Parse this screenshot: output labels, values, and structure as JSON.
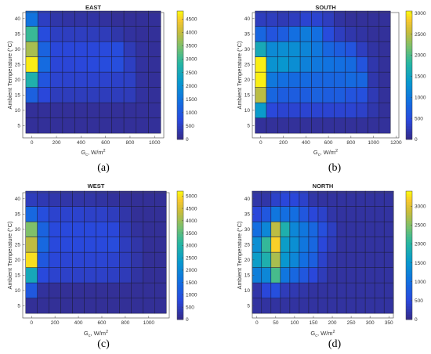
{
  "chart_data": [
    {
      "type": "heatmap",
      "title": "EAST",
      "caption": "(a)",
      "xlabel_main": "G",
      "xlabel_sub": "c",
      "xlabel_rest": ", W/m",
      "xlabel_sup": "2",
      "ylabel": "Ambient Temperature (°C)",
      "xlim": [
        -75,
        1075
      ],
      "ylim": [
        1,
        42
      ],
      "xticks": [
        0,
        200,
        400,
        600,
        800,
        1000
      ],
      "yticks": [
        5,
        10,
        15,
        20,
        25,
        30,
        35,
        40
      ],
      "x_edges": [
        -50,
        50,
        150,
        250,
        350,
        450,
        550,
        650,
        750,
        850,
        950,
        1050
      ],
      "y_edges": [
        2.5,
        7.5,
        12.5,
        17.5,
        22.5,
        27.5,
        32.5,
        37.5,
        42.5
      ],
      "colorbar_max": 4800,
      "colorbar_ticks": [
        0,
        500,
        1000,
        1500,
        2000,
        2500,
        3000,
        3500,
        4000,
        4500
      ],
      "values": [
        [
          150,
          150,
          150,
          150,
          150,
          150,
          150,
          150,
          150,
          150,
          150
        ],
        [
          150,
          150,
          150,
          150,
          150,
          150,
          150,
          150,
          150,
          150,
          150
        ],
        [
          1150,
          700,
          450,
          450,
          450,
          450,
          450,
          450,
          420,
          200,
          150
        ],
        [
          2700,
          950,
          620,
          600,
          600,
          600,
          600,
          560,
          520,
          200,
          150
        ],
        [
          4700,
          1350,
          680,
          680,
          700,
          740,
          800,
          820,
          500,
          200,
          150
        ],
        [
          3800,
          1200,
          700,
          700,
          700,
          700,
          760,
          800,
          400,
          200,
          150
        ],
        [
          3000,
          800,
          500,
          480,
          480,
          450,
          420,
          300,
          200,
          150,
          150
        ],
        [
          1500,
          500,
          300,
          250,
          250,
          250,
          200,
          150,
          150,
          150,
          150
        ]
      ]
    },
    {
      "type": "heatmap",
      "title": "SOUTH",
      "caption": "(b)",
      "xlabel_main": "G",
      "xlabel_sub": "c",
      "xlabel_rest": ", W/m",
      "xlabel_sup": "2",
      "ylabel": "Ambient Temperature (°C)",
      "xlim": [
        -75,
        1225
      ],
      "ylim": [
        1,
        42
      ],
      "xticks": [
        0,
        200,
        400,
        600,
        800,
        1000,
        1200
      ],
      "yticks": [
        5,
        10,
        15,
        20,
        25,
        30,
        35,
        40
      ],
      "x_edges": [
        -50,
        50,
        150,
        250,
        350,
        450,
        550,
        650,
        750,
        850,
        950,
        1050,
        1150
      ],
      "y_edges": [
        2.5,
        7.5,
        12.5,
        17.5,
        22.5,
        27.5,
        32.5,
        37.5,
        42.5
      ],
      "colorbar_max": 3050,
      "colorbar_ticks": [
        0,
        500,
        1000,
        1500,
        2000,
        2500,
        3000
      ],
      "values": [
        [
          100,
          100,
          100,
          100,
          100,
          100,
          100,
          100,
          100,
          100,
          100,
          100
        ],
        [
          1400,
          450,
          400,
          400,
          400,
          400,
          400,
          400,
          400,
          350,
          200,
          100
        ],
        [
          2500,
          800,
          700,
          700,
          700,
          750,
          700,
          700,
          600,
          550,
          250,
          100
        ],
        [
          3000,
          1000,
          900,
          850,
          850,
          800,
          800,
          800,
          850,
          800,
          200,
          100
        ],
        [
          3000,
          1300,
          1350,
          1250,
          1100,
          1000,
          950,
          900,
          850,
          600,
          200,
          100
        ],
        [
          1600,
          1200,
          1250,
          1250,
          1150,
          1000,
          800,
          700,
          600,
          300,
          150,
          100
        ],
        [
          800,
          600,
          700,
          900,
          1050,
          900,
          500,
          300,
          200,
          150,
          100,
          100
        ],
        [
          300,
          300,
          250,
          300,
          400,
          400,
          300,
          150,
          100,
          100,
          100,
          100
        ]
      ]
    },
    {
      "type": "heatmap",
      "title": "WEST",
      "caption": "(c)",
      "xlabel_main": "G",
      "xlabel_sub": "c",
      "xlabel_rest": ", W/m",
      "xlabel_sup": "2",
      "ylabel": "Ambient Temperature (°C)",
      "xlim": [
        -75,
        1175
      ],
      "ylim": [
        1,
        42
      ],
      "xticks": [
        0,
        200,
        400,
        600,
        800,
        1000
      ],
      "yticks": [
        5,
        10,
        15,
        20,
        25,
        30,
        35,
        40
      ],
      "x_edges": [
        -50,
        50,
        150,
        250,
        350,
        450,
        550,
        650,
        750,
        850,
        950,
        1050,
        1150
      ],
      "y_edges": [
        2.5,
        7.5,
        12.5,
        17.5,
        22.5,
        27.5,
        32.5,
        37.5,
        42.5
      ],
      "colorbar_max": 5200,
      "colorbar_ticks": [
        0,
        500,
        1000,
        1500,
        2000,
        2500,
        3000,
        3500,
        4000,
        4500,
        5000
      ],
      "values": [
        [
          150,
          150,
          150,
          150,
          150,
          150,
          150,
          150,
          150,
          150,
          150,
          150
        ],
        [
          1100,
          200,
          150,
          150,
          150,
          150,
          150,
          150,
          150,
          150,
          150,
          150
        ],
        [
          2700,
          800,
          650,
          600,
          600,
          600,
          600,
          550,
          450,
          250,
          150,
          150
        ],
        [
          5000,
          1100,
          750,
          700,
          700,
          700,
          700,
          650,
          500,
          300,
          150,
          150
        ],
        [
          4300,
          1400,
          800,
          800,
          800,
          800,
          800,
          850,
          500,
          300,
          150,
          150
        ],
        [
          3800,
          1300,
          800,
          800,
          800,
          800,
          800,
          750,
          400,
          200,
          150,
          150
        ],
        [
          1400,
          900,
          650,
          650,
          650,
          600,
          600,
          500,
          300,
          150,
          150,
          150
        ],
        [
          500,
          400,
          350,
          300,
          300,
          300,
          250,
          200,
          150,
          150,
          150,
          150
        ]
      ]
    },
    {
      "type": "heatmap",
      "title": "NORTH",
      "caption": "(d)",
      "xlabel_main": "G",
      "xlabel_sub": "c",
      "xlabel_rest": ", W/m",
      "xlabel_sup": "2",
      "ylabel": "Ambient Temperature (°C)",
      "xlim": [
        -12,
        362
      ],
      "ylim": [
        1,
        42
      ],
      "xticks": [
        0,
        50,
        100,
        150,
        200,
        250,
        300,
        350
      ],
      "yticks": [
        5,
        10,
        15,
        20,
        25,
        30,
        35,
        40
      ],
      "x_edges": [
        -12.5,
        12.5,
        37.5,
        62.5,
        87.5,
        112.5,
        137.5,
        162.5,
        187.5,
        212.5,
        237.5,
        262.5,
        287.5,
        312.5,
        337.5,
        362.5
      ],
      "y_edges": [
        2.5,
        7.5,
        12.5,
        17.5,
        22.5,
        27.5,
        32.5,
        37.5,
        42.5
      ],
      "colorbar_max": 3400,
      "colorbar_ticks": [
        0,
        500,
        1000,
        1500,
        2000,
        2500,
        3000
      ],
      "values": [
        [
          150,
          150,
          150,
          150,
          150,
          150,
          150,
          150,
          150,
          150,
          150,
          150,
          150,
          150,
          150
        ],
        [
          200,
          500,
          600,
          300,
          250,
          200,
          150,
          150,
          150,
          150,
          150,
          150,
          150,
          150,
          150
        ],
        [
          1200,
          1300,
          2200,
          1100,
          900,
          700,
          500,
          300,
          150,
          150,
          150,
          150,
          150,
          150,
          150
        ],
        [
          1600,
          1900,
          2700,
          1500,
          1300,
          1000,
          800,
          400,
          200,
          150,
          150,
          150,
          150,
          150,
          150
        ],
        [
          1400,
          2100,
          3200,
          1600,
          1400,
          1100,
          900,
          500,
          300,
          150,
          150,
          150,
          150,
          150,
          150
        ],
        [
          1000,
          1300,
          2800,
          1900,
          1300,
          1100,
          900,
          600,
          350,
          150,
          150,
          150,
          150,
          150,
          150
        ],
        [
          500,
          700,
          1100,
          1000,
          1000,
          700,
          500,
          400,
          200,
          150,
          150,
          150,
          150,
          150,
          150
        ],
        [
          200,
          200,
          400,
          500,
          500,
          400,
          200,
          150,
          150,
          150,
          150,
          150,
          150,
          150,
          150
        ]
      ]
    }
  ]
}
